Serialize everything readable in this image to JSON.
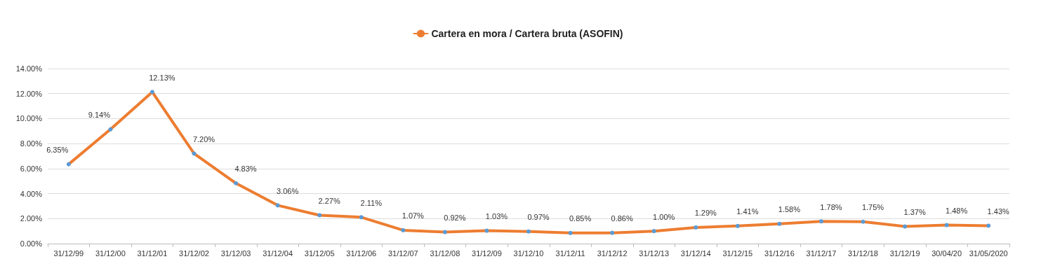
{
  "chart_data": {
    "type": "line",
    "categories": [
      "31/12/99",
      "31/12/00",
      "31/12/01",
      "31/12/02",
      "31/12/03",
      "31/12/04",
      "31/12/05",
      "31/12/06",
      "31/12/07",
      "31/12/08",
      "31/12/09",
      "31/12/10",
      "31/12/11",
      "31/12/12",
      "31/12/13",
      "31/12/14",
      "31/12/15",
      "31/12/16",
      "31/12/17",
      "31/12/18",
      "31/12/19",
      "30/04/20",
      "31/05/2020"
    ],
    "series": [
      {
        "name": "Cartera en mora / Cartera bruta (ASOFIN)",
        "color": "#ed7d31",
        "colors": [
          "#5b9bd5",
          "#5b9bd5",
          "#5b9bd5",
          "#5b9bd5",
          "#5b9bd5",
          "#5b9bd5",
          "#5b9bd5",
          "#5b9bd5",
          "#5b9bd5",
          "#5b9bd5",
          "#5b9bd5",
          "#5b9bd5",
          "#5b9bd5",
          "#5b9bd5",
          "#5b9bd5",
          "#5b9bd5",
          "#5b9bd5",
          "#5b9bd5",
          "#5b9bd5",
          "#5b9bd5",
          "#5b9bd5",
          "#5b9bd5",
          "#5b9bd5"
        ],
        "values": [
          6.35,
          9.14,
          12.13,
          7.2,
          4.83,
          3.06,
          2.27,
          2.11,
          1.07,
          0.92,
          1.03,
          0.97,
          0.85,
          0.86,
          1.0,
          1.29,
          1.41,
          1.58,
          1.78,
          1.75,
          1.37,
          1.48,
          1.43
        ],
        "value_labels": [
          "6.35%",
          "9.14%",
          "12.13%",
          "7.20%",
          "4.83%",
          "3.06%",
          "2.27%",
          "2.11%",
          "1.07%",
          "0.92%",
          "1.03%",
          "0.97%",
          "0.85%",
          "0.86%",
          "1.00%",
          "1.29%",
          "1.41%",
          "1.58%",
          "1.78%",
          "1.75%",
          "1.37%",
          "1.48%",
          "1.43%"
        ]
      }
    ],
    "ylim": [
      0,
      14
    ],
    "yticks": [
      {
        "value": 0,
        "label": "0.00%"
      },
      {
        "value": 2,
        "label": "2.00%"
      },
      {
        "value": 4,
        "label": "4.00%"
      },
      {
        "value": 6,
        "label": "6.00%"
      },
      {
        "value": 8,
        "label": "8.00%"
      },
      {
        "value": 10,
        "label": "10.00%"
      },
      {
        "value": 12,
        "label": "12.00%"
      },
      {
        "value": 14,
        "label": "14.00%"
      }
    ],
    "grid": "y",
    "legend": "top",
    "marker": "circle",
    "line_style": "solid"
  }
}
